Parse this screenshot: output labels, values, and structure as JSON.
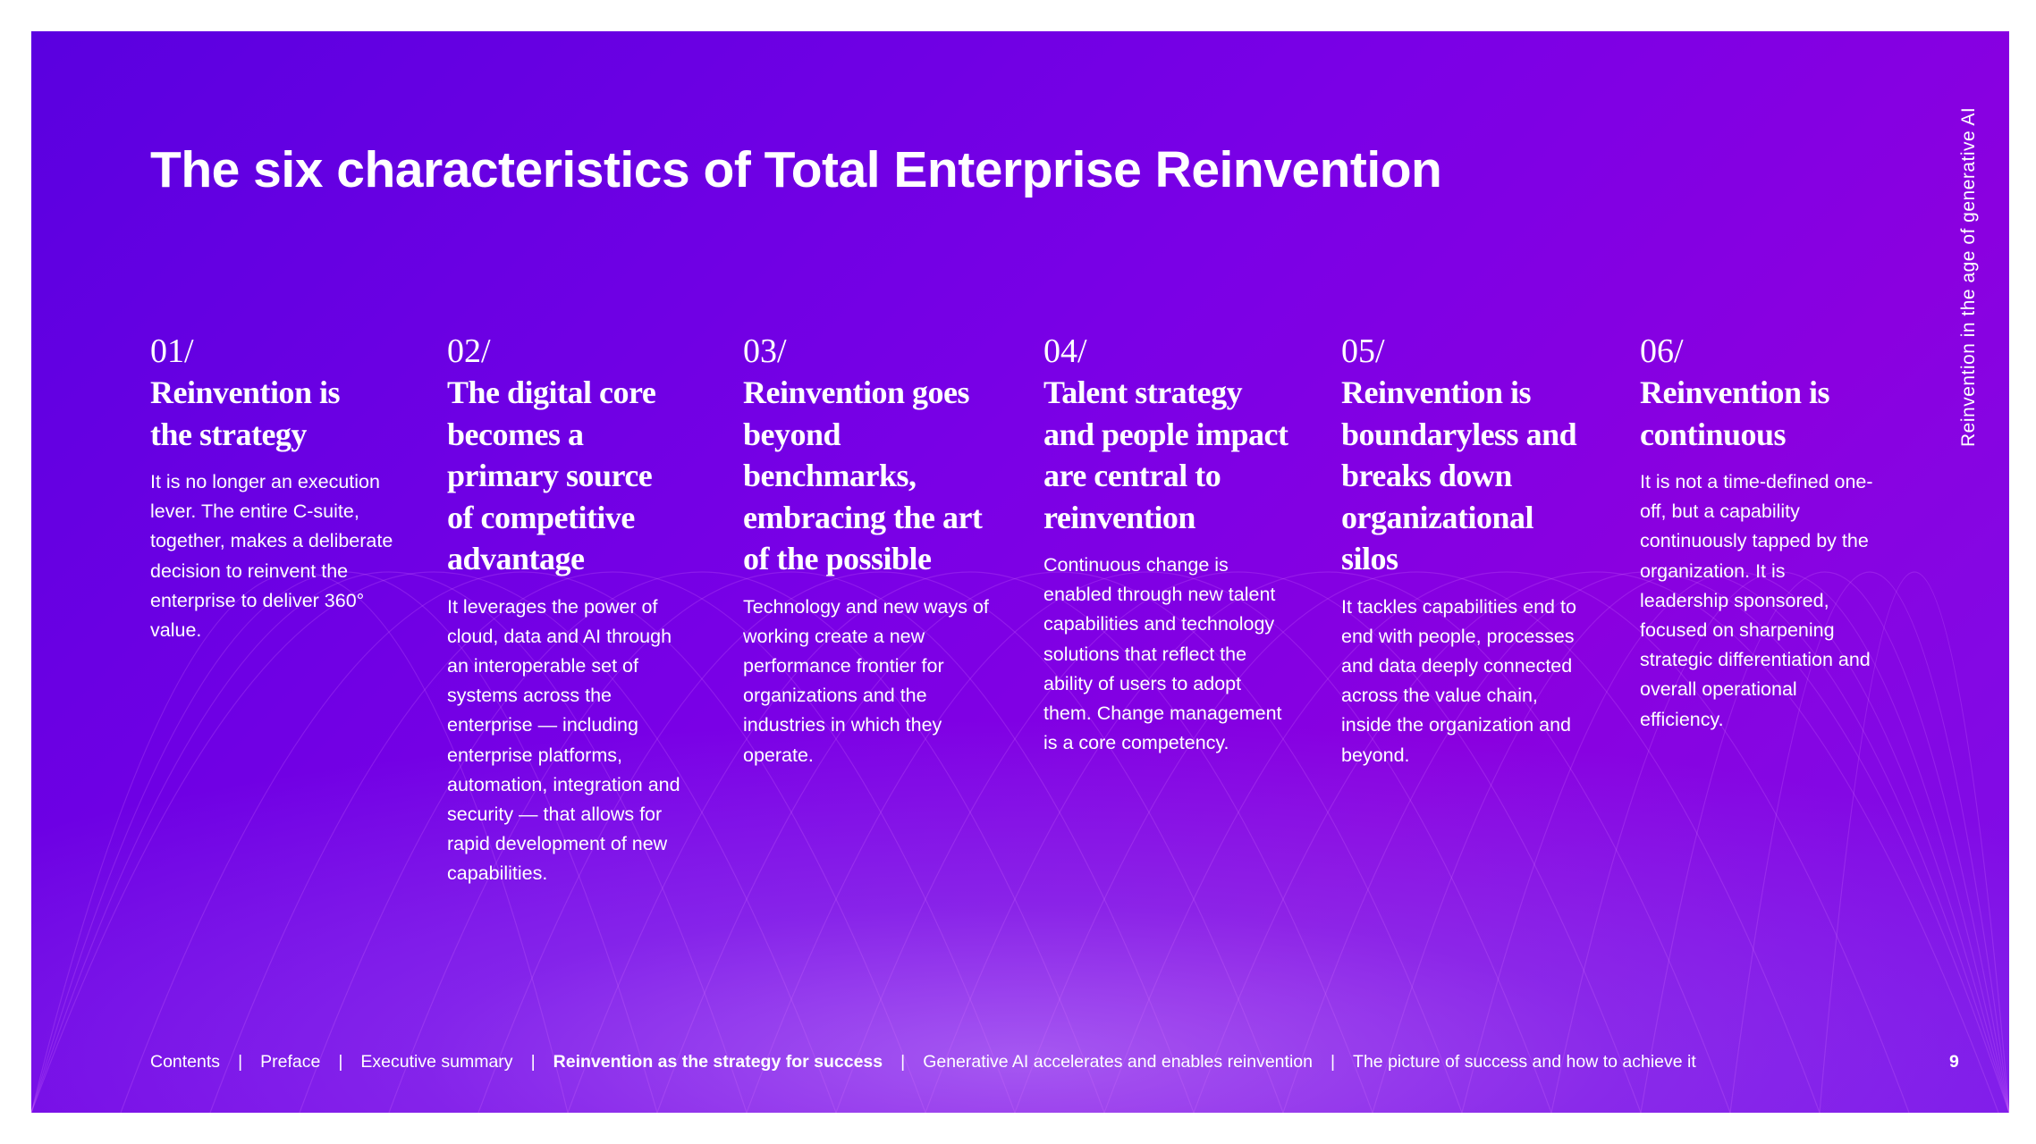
{
  "title": "The six characteristics of Total Enterprise Reinvention",
  "side_label": "Reinvention in the age of generative AI",
  "characteristics": [
    {
      "number": "01/",
      "heading": "Reinvention is the strategy",
      "body": "It is no longer an execution lever. The entire C-suite, together, makes a deliberate decision to reinvent the enterprise to deliver 360° value."
    },
    {
      "number": "02/",
      "heading": "The digital core becomes a primary source of competitive advantage",
      "body": "It leverages the power of cloud, data and AI through an interoperable set of systems across the enterprise — including enterprise platforms, automation, integration and security — that allows for rapid development of new capabilities."
    },
    {
      "number": "03/",
      "heading": "Reinvention goes beyond benchmarks, embracing the art of the possible",
      "body": "Technology and new ways of working create a new performance frontier for organizations and the industries in which they operate."
    },
    {
      "number": "04/",
      "heading": "Talent strategy and people impact are central to reinvention",
      "body": "Continuous change is enabled through new talent capabilities and technology solutions that reflect the ability of users to adopt them. Change management is a core competency."
    },
    {
      "number": "05/",
      "heading": "Reinvention is boundaryless and breaks down organizational silos",
      "body": "It tackles capabilities end to end with people, processes and data deeply connected across the value chain, inside the organization and beyond."
    },
    {
      "number": "06/",
      "heading": "Reinvention is continuous",
      "body": "It is not a time-defined one-off, but a capability continuously tapped by the organization. It is leadership sponsored, focused on sharpening strategic differentiation and overall operational efficiency."
    }
  ],
  "footer": {
    "separator": "|",
    "links": [
      {
        "label": "Contents"
      },
      {
        "label": "Preface"
      },
      {
        "label": "Executive summary"
      },
      {
        "label": "Reinvention as the strategy for success",
        "active": true
      },
      {
        "label": "Generative AI accelerates and enables reinvention"
      },
      {
        "label": "The picture of success and how to achieve it"
      }
    ],
    "page_number": "9"
  },
  "colors": {
    "background": "#6a00e4",
    "text": "#ffffff"
  }
}
